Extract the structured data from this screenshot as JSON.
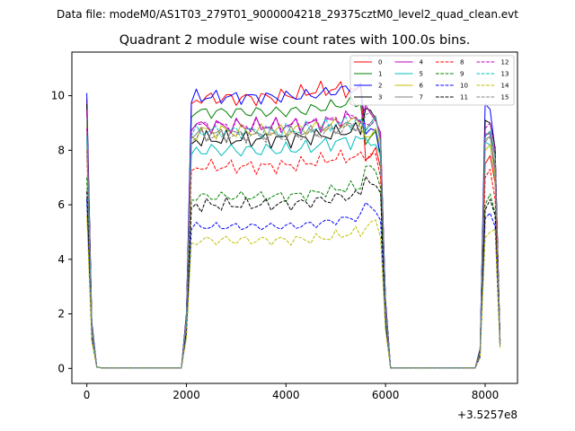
{
  "header": {
    "datafile": "Data file: modeM0/AS1T03_279T01_9000004218_29375cztM0_level2_quad_clean.evt"
  },
  "chart_data": {
    "type": "line",
    "title": "Quadrant 2 module wise count rates with 100.0s bins.",
    "xlabel": "",
    "ylabel": "",
    "x_offset_label": "+3.5257e8",
    "xlim": [
      -300,
      8650
    ],
    "ylim": [
      -0.55,
      11.6
    ],
    "x_ticks": [
      0,
      2000,
      4000,
      6000,
      8000
    ],
    "x_tick_labels": [
      "0",
      "2000",
      "4000",
      "6000",
      "8000"
    ],
    "y_ticks": [
      0,
      2,
      4,
      6,
      8,
      10
    ],
    "y_tick_labels": [
      "0",
      "2",
      "4",
      "6",
      "8",
      "10"
    ],
    "legend_position": "top-right",
    "bin_seconds": 100,
    "segments": [
      {
        "start": 0,
        "n": 3
      },
      {
        "start": 2000,
        "n": 41
      },
      {
        "start": 7800,
        "n": 5
      }
    ],
    "series": [
      {
        "name": "0",
        "color": "#ff0000",
        "dash": "solid",
        "seg1": [
          9.9,
          1.6,
          0.05
        ],
        "level": 9.9,
        "amp": 0.35,
        "peak": 5000,
        "seg3": [
          0.7,
          7.5,
          7.8,
          6.8,
          1.0
        ],
        "tail": 8.0
      },
      {
        "name": "1",
        "color": "#008000",
        "dash": "solid",
        "seg1": [
          9.6,
          1.5,
          0.05
        ],
        "level": 9.4,
        "amp": 0.3,
        "peak": 5500,
        "seg3": [
          0.6,
          8.5,
          8.7,
          7.8,
          1.0
        ],
        "tail": 8.4
      },
      {
        "name": "2",
        "color": "#0000ff",
        "dash": "solid",
        "seg1": [
          10.1,
          1.7,
          0.05
        ],
        "level": 9.95,
        "amp": 0.3,
        "peak": 5600,
        "seg3": [
          0.7,
          9.7,
          9.5,
          8.0,
          1.0
        ],
        "tail": 8.5
      },
      {
        "name": "3",
        "color": "#000000",
        "dash": "solid",
        "seg1": [
          9.7,
          1.6,
          0.05
        ],
        "level": 8.4,
        "amp": 0.35,
        "peak": 5600,
        "seg3": [
          0.7,
          9.1,
          9.0,
          8.1,
          1.0
        ],
        "tail": 9.2
      },
      {
        "name": "4",
        "color": "#bf00bf",
        "dash": "solid",
        "seg1": [
          9.5,
          1.5,
          0.05
        ],
        "level": 8.9,
        "amp": 0.35,
        "peak": 5700,
        "seg3": [
          0.6,
          8.6,
          8.6,
          7.2,
          0.9
        ],
        "tail": 9.4
      },
      {
        "name": "5",
        "color": "#00bfbf",
        "dash": "solid",
        "seg1": [
          8.4,
          1.4,
          0.05
        ],
        "level": 8.0,
        "amp": 0.35,
        "peak": 5400,
        "seg3": [
          0.6,
          8.3,
          8.2,
          7.0,
          0.9
        ],
        "tail": 8.5
      },
      {
        "name": "6",
        "color": "#bfbf00",
        "dash": "solid",
        "seg1": [
          9.0,
          1.5,
          0.05
        ],
        "level": 8.7,
        "amp": 0.35,
        "peak": 5500,
        "seg3": [
          0.6,
          8.0,
          8.2,
          7.1,
          0.9
        ],
        "tail": 8.8
      },
      {
        "name": "7",
        "color": "#808080",
        "dash": "solid",
        "seg1": [
          9.2,
          1.5,
          0.05
        ],
        "level": 8.6,
        "amp": 0.3,
        "peak": 5600,
        "seg3": [
          0.6,
          8.4,
          8.5,
          7.4,
          0.9
        ],
        "tail": 9.0
      },
      {
        "name": "8",
        "color": "#ff0000",
        "dash": "dashed",
        "seg1": [
          8.0,
          1.3,
          0.05
        ],
        "level": 7.4,
        "amp": 0.3,
        "peak": 5300,
        "seg3": [
          0.5,
          7.0,
          7.3,
          6.2,
          0.9
        ],
        "tail": 7.6
      },
      {
        "name": "9",
        "color": "#008000",
        "dash": "dashed",
        "seg1": [
          7.0,
          1.2,
          0.05
        ],
        "level": 6.3,
        "amp": 0.25,
        "peak": 5500,
        "seg3": [
          0.5,
          6.0,
          6.4,
          5.7,
          0.8
        ],
        "tail": 7.2
      },
      {
        "name": "10",
        "color": "#0000ff",
        "dash": "dashed",
        "seg1": [
          6.2,
          1.1,
          0.05
        ],
        "level": 5.2,
        "amp": 0.2,
        "peak": 5600,
        "seg3": [
          0.4,
          5.5,
          5.7,
          5.2,
          0.8
        ],
        "tail": 5.9
      },
      {
        "name": "11",
        "color": "#000000",
        "dash": "dashed",
        "seg1": [
          6.5,
          1.1,
          0.05
        ],
        "level": 6.0,
        "amp": 0.3,
        "peak": 5500,
        "seg3": [
          0.5,
          5.8,
          6.2,
          5.6,
          0.8
        ],
        "tail": 7.0
      },
      {
        "name": "12",
        "color": "#bf00bf",
        "dash": "dashed",
        "seg1": [
          8.8,
          1.4,
          0.05
        ],
        "level": 8.9,
        "amp": 0.3,
        "peak": 5600,
        "seg3": [
          0.6,
          8.8,
          9.0,
          8.0,
          0.9
        ],
        "tail": 9.2
      },
      {
        "name": "13",
        "color": "#00bfbf",
        "dash": "dashed",
        "seg1": [
          8.5,
          1.4,
          0.05
        ],
        "level": 8.7,
        "amp": 0.3,
        "peak": 5500,
        "seg3": [
          0.6,
          8.5,
          8.7,
          7.7,
          0.9
        ],
        "tail": 9.0
      },
      {
        "name": "14",
        "color": "#bfbf00",
        "dash": "dashed",
        "seg1": [
          5.6,
          1.0,
          0.05
        ],
        "level": 4.7,
        "amp": 0.25,
        "peak": 5800,
        "seg3": [
          0.4,
          4.8,
          5.0,
          5.1,
          0.7
        ],
        "tail": 5.2
      },
      {
        "name": "15",
        "color": "#808080",
        "dash": "dashed",
        "seg1": [
          8.6,
          1.4,
          0.05
        ],
        "level": 8.5,
        "amp": 0.3,
        "peak": 5600,
        "seg3": [
          0.6,
          8.3,
          8.5,
          7.8,
          0.9
        ],
        "tail": 9.1
      }
    ]
  }
}
